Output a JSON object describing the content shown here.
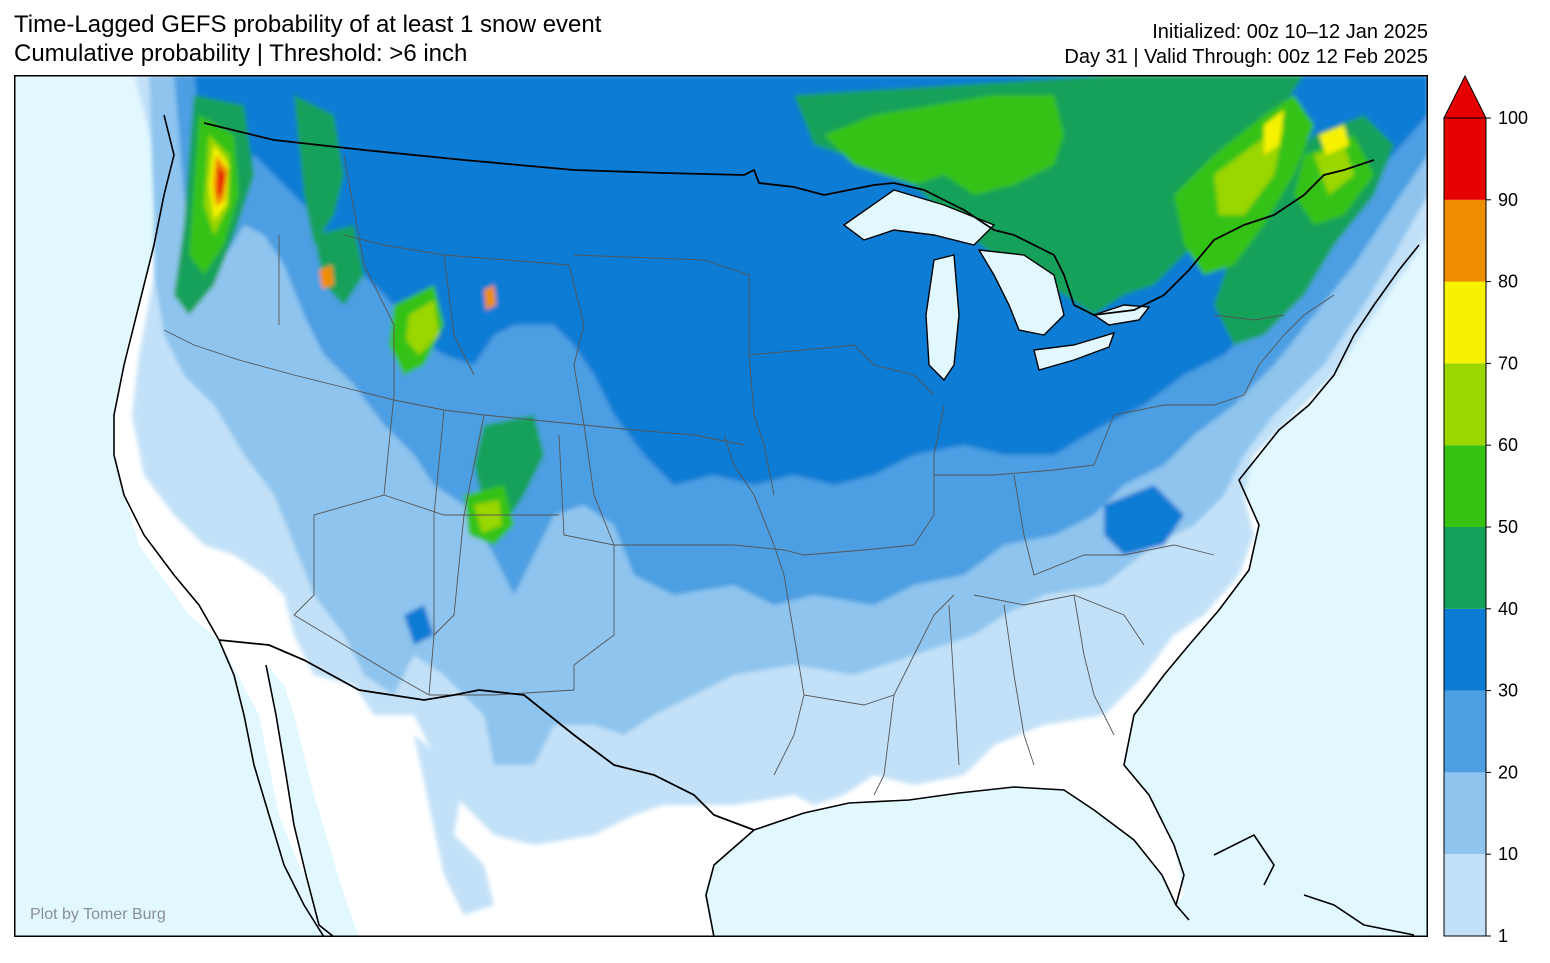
{
  "header": {
    "title_line1": "Time-Lagged GEFS probability of at least 1 snow event",
    "title_line2": "Cumulative probability | Threshold: >6 inch",
    "init_line1": "Initialized: 00z 10–12 Jan 2025",
    "init_line2": "Day 31 | Valid Through: 00z 12 Feb 2025"
  },
  "credit": "Plot by Tomer Burg",
  "colorbar": {
    "levels": [
      1,
      10,
      20,
      30,
      40,
      50,
      60,
      70,
      80,
      90,
      100
    ],
    "labels": [
      "1",
      "10",
      "20",
      "30",
      "40",
      "50",
      "60",
      "70",
      "80",
      "90",
      "100"
    ],
    "colors": [
      "#c2e1f8",
      "#8ec4ee",
      "#4c9fe2",
      "#0c7bd4",
      "#14a15a",
      "#36c212",
      "#9ad600",
      "#f7f300",
      "#ef8d00",
      "#e70000"
    ],
    "extend": "max"
  },
  "map": {
    "ocean_color": "#e2f8ff",
    "land_color": "#ffffff"
  }
}
